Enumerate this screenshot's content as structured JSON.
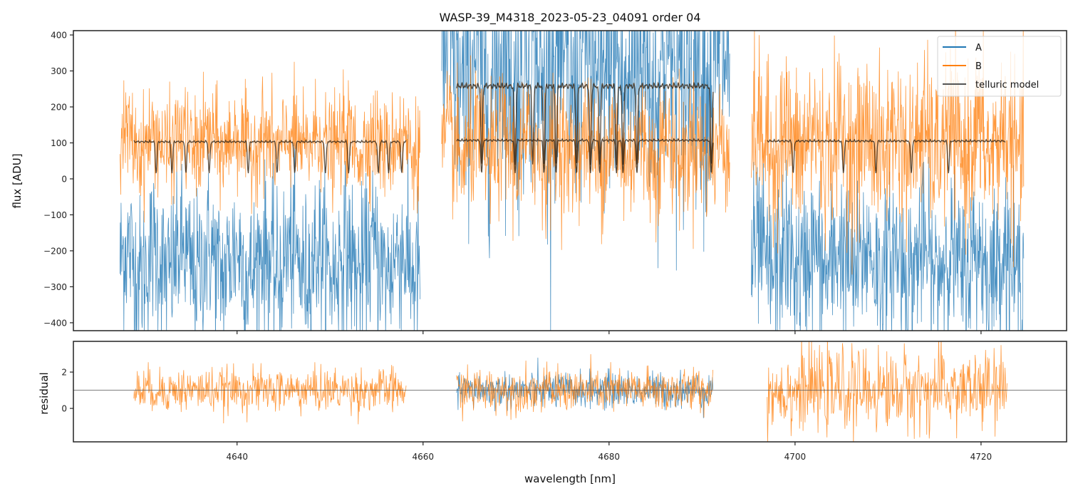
{
  "chart_data": [
    {
      "type": "line",
      "panel": "flux",
      "title": "WASP-39_M4318_2023-05-23_04091  order 04",
      "xlabel": "",
      "ylabel": "flux [ADU]",
      "xlim": [
        4622.4,
        4729.2
      ],
      "ylim": [
        -422,
        412
      ],
      "yticks": [
        -400,
        -300,
        -200,
        -100,
        0,
        100,
        200,
        300,
        400
      ],
      "ytick_labels": [
        "−400",
        "−300",
        "−200",
        "−100",
        "0",
        "100",
        "200",
        "300",
        "400"
      ],
      "xticks": [
        4640,
        4660,
        4680,
        4700,
        4720
      ],
      "grid": false,
      "legend": {
        "placement": "top-right",
        "entries": [
          "A",
          "B",
          "telluric model"
        ]
      },
      "series": [
        {
          "name": "A",
          "color": "#1f77b4",
          "segments": [
            {
              "x_range": [
                4627.4,
                4659.7
              ],
              "mean": -230,
              "noise": 110
            },
            {
              "x_range": [
                4662.0,
                4693.0
              ],
              "mean": 300,
              "noise": 180
            },
            {
              "x_range": [
                4695.3,
                4724.6
              ],
              "mean": -230,
              "noise": 110
            }
          ]
        },
        {
          "name": "B",
          "color": "#ff7f0e",
          "segments": [
            {
              "x_range": [
                4627.4,
                4659.7
              ],
              "mean": 100,
              "noise": 70
            },
            {
              "x_range": [
                4662.0,
                4693.0
              ],
              "mean": 80,
              "noise": 90
            },
            {
              "x_range": [
                4695.3,
                4724.6
              ],
              "mean": 100,
              "noise": 110
            }
          ]
        },
        {
          "name": "telluric model",
          "color": "#3a2a1a",
          "segments": [
            {
              "x_range": [
                4628.9,
                4658.2
              ],
              "continuum": 108,
              "lines": [
                4631.3,
                4633.0,
                4634.5,
                4637.0,
                4641.2,
                4644.3,
                4646.2,
                4649.5,
                4652.0,
                4655.2,
                4656.3,
                4657.7
              ]
            },
            {
              "x_range": [
                4663.6,
                4691.2
              ],
              "continuum": 270,
              "lines": [
                4666.3,
                4669.9,
                4671.8,
                4673.0,
                4674.3,
                4676.5,
                4678.0,
                4679.0,
                4680.8,
                4681.5,
                4683.0,
                4691.0
              ]
            },
            {
              "x_range": [
                4663.6,
                4691.2
              ],
              "continuum": 112,
              "lines": [
                4666.3,
                4669.9,
                4673.0,
                4674.3,
                4676.5,
                4678.0,
                4679.0,
                4680.8,
                4681.5,
                4683.0,
                4691.0
              ]
            },
            {
              "x_range": [
                4697.0,
                4722.6
              ],
              "continuum": 110,
              "lines": [
                4699.8,
                4705.2,
                4708.7,
                4712.5,
                4716.5
              ]
            }
          ]
        }
      ]
    },
    {
      "type": "line",
      "panel": "residual",
      "xlabel": "wavelength [nm]",
      "ylabel": "residual",
      "xlim": [
        4622.4,
        4729.2
      ],
      "ylim": [
        -1.84,
        3.69
      ],
      "yticks": [
        0,
        2
      ],
      "ytick_labels": [
        "0",
        "2"
      ],
      "xticks": [
        4640,
        4660,
        4680,
        4700,
        4720
      ],
      "xtick_labels": [
        "4640",
        "4660",
        "4680",
        "4700",
        "4720"
      ],
      "reference_line": 1,
      "grid": false,
      "series": [
        {
          "name": "A",
          "color": "#1f77b4",
          "segments": [
            {
              "x_range": [
                4663.6,
                4691.2
              ],
              "mean": 1.0,
              "noise": 0.5
            }
          ]
        },
        {
          "name": "B",
          "color": "#ff7f0e",
          "segments": [
            {
              "x_range": [
                4628.9,
                4658.2
              ],
              "mean": 1.0,
              "noise": 0.6
            },
            {
              "x_range": [
                4663.6,
                4691.2
              ],
              "mean": 1.0,
              "noise": 0.6
            },
            {
              "x_range": [
                4697.0,
                4722.8
              ],
              "mean": 1.0,
              "noise": 1.1
            }
          ]
        }
      ]
    }
  ]
}
